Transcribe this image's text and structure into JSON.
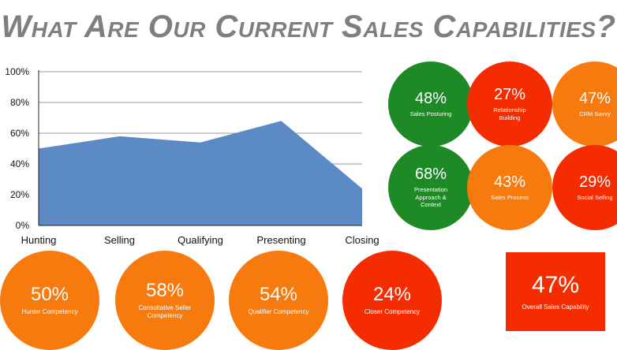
{
  "title": "What Are Our Current Sales Capabilities?",
  "colors": {
    "green": "#1e8a26",
    "red": "#f42c00",
    "orange": "#f77a0e",
    "area": "#5b8ac4"
  },
  "chart_data": {
    "type": "area",
    "categories": [
      "Hunting",
      "Selling",
      "Qualifying",
      "Presenting",
      "Closing"
    ],
    "values": [
      50,
      58,
      54,
      68,
      24
    ],
    "ylim": [
      0,
      100
    ],
    "yticks": [
      "0%",
      "20%",
      "40%",
      "60%",
      "80%",
      "100%"
    ],
    "grid": true
  },
  "capabilities": [
    {
      "pct": "48%",
      "label": "Sales Posturing",
      "color": "#1e8a26"
    },
    {
      "pct": "27%",
      "label": "Relationship Building",
      "color": "#f42c00"
    },
    {
      "pct": "47%",
      "label": "CRM Savvy",
      "color": "#f77a0e"
    },
    {
      "pct": "68%",
      "label": "Presentation Approach & Context",
      "color": "#1e8a26"
    },
    {
      "pct": "43%",
      "label": "Sales Process",
      "color": "#f77a0e"
    },
    {
      "pct": "29%",
      "label": "Social Selling",
      "color": "#f42c00"
    }
  ],
  "competencies": [
    {
      "pct": "50%",
      "label": "Hunter Competency",
      "color": "#f77a0e"
    },
    {
      "pct": "58%",
      "label": "Consultative Seller Competency",
      "color": "#f77a0e"
    },
    {
      "pct": "54%",
      "label": "Qualifier Competency",
      "color": "#f77a0e"
    },
    {
      "pct": "24%",
      "label": "Closer Competency",
      "color": "#f42c00"
    }
  ],
  "overall": {
    "pct": "47%",
    "label": "Overall Sales Capability",
    "color": "#f42c00"
  }
}
